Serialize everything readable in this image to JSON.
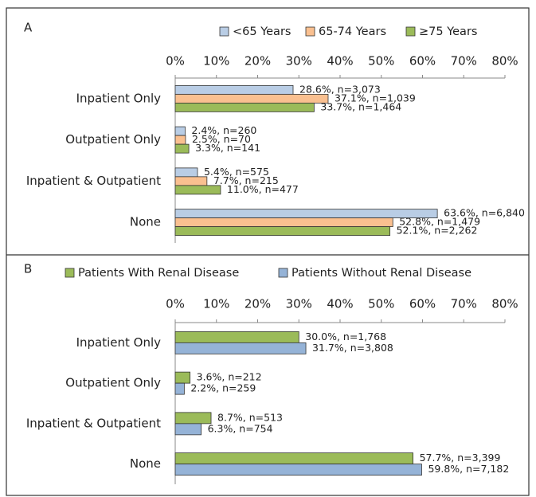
{
  "chart_data": [
    {
      "type": "bar",
      "orientation": "horizontal",
      "label": "A",
      "categories": [
        "Inpatient Only",
        "Outpatient Only",
        "Inpatient & Outpatient",
        "None"
      ],
      "series": [
        {
          "name": "<65 Years",
          "color": "#b9cde5",
          "values": [
            28.6,
            2.4,
            5.4,
            63.6
          ],
          "value_labels": [
            "28.6%, n=3,073",
            "2.4%, n=260",
            "5.4%, n=575",
            "63.6%, n=6,840"
          ]
        },
        {
          "name": "65-74 Years",
          "color": "#fac090",
          "values": [
            37.1,
            2.5,
            7.7,
            52.8
          ],
          "value_labels": [
            "37.1%, n=1,039",
            "2.5%, n=70",
            "7.7%, n=215",
            "52.8%, n=1,479"
          ]
        },
        {
          "name": "≥75 Years",
          "color": "#9bbb59",
          "values": [
            33.7,
            3.3,
            11.0,
            52.1
          ],
          "value_labels": [
            "33.7%, n=1,464",
            "3.3%, n=141",
            "11.0%, n=477",
            "52.1%, n=2,262"
          ]
        }
      ],
      "xlim": [
        0,
        80
      ],
      "xticks": [
        {
          "value": 0,
          "label": "0%"
        },
        {
          "value": 10,
          "label": "10%"
        },
        {
          "value": 20,
          "label": "20%"
        },
        {
          "value": 30,
          "label": "30%"
        },
        {
          "value": 40,
          "label": "40%"
        },
        {
          "value": 50,
          "label": "50%"
        },
        {
          "value": 60,
          "label": "60%"
        },
        {
          "value": 70,
          "label": "70%"
        },
        {
          "value": 80,
          "label": "80%"
        }
      ],
      "legend": "top"
    },
    {
      "type": "bar",
      "orientation": "horizontal",
      "label": "B",
      "categories": [
        "Inpatient Only",
        "Outpatient Only",
        "Inpatient & Outpatient",
        "None"
      ],
      "series": [
        {
          "name": "Patients With Renal Disease",
          "color": "#9bbb59",
          "values": [
            30.0,
            3.6,
            8.7,
            57.7
          ],
          "value_labels": [
            "30.0%, n=1,768",
            "3.6%, n=212",
            "8.7%, n=513",
            "57.7%, n=3,399"
          ]
        },
        {
          "name": "Patients Without Renal Disease",
          "color": "#95b3d7",
          "values": [
            31.7,
            2.2,
            6.3,
            59.8
          ],
          "value_labels": [
            "31.7%, n=3,808",
            "2.2%, n=259",
            "6.3%, n=754",
            "59.8%, n=7,182"
          ]
        }
      ],
      "xlim": [
        0,
        80
      ],
      "xticks": [
        {
          "value": 0,
          "label": "0%"
        },
        {
          "value": 10,
          "label": "10%"
        },
        {
          "value": 20,
          "label": "20%"
        },
        {
          "value": 30,
          "label": "30%"
        },
        {
          "value": 40,
          "label": "40%"
        },
        {
          "value": 50,
          "label": "50%"
        },
        {
          "value": 60,
          "label": "60%"
        },
        {
          "value": 70,
          "label": "70%"
        },
        {
          "value": 80,
          "label": "80%"
        }
      ],
      "legend": "top"
    }
  ]
}
